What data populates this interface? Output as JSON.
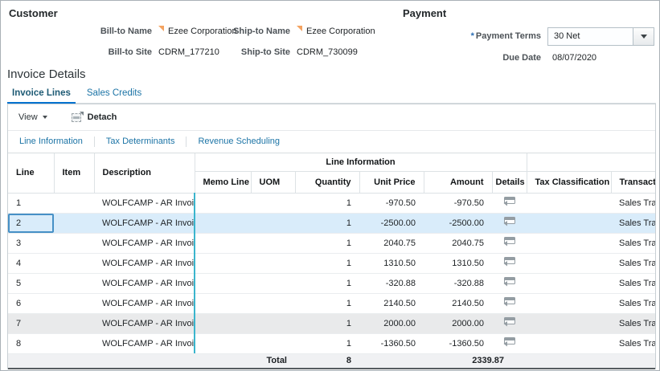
{
  "customer": {
    "title": "Customer",
    "fields": {
      "bill_to_name": {
        "label": "Bill-to Name",
        "value": "Ezee Corporation"
      },
      "ship_to_name": {
        "label": "Ship-to Name",
        "value": "Ezee Corporation"
      },
      "bill_to_site": {
        "label": "Bill-to Site",
        "value": "CDRM_177210"
      },
      "ship_to_site": {
        "label": "Ship-to Site",
        "value": "CDRM_730099"
      }
    }
  },
  "payment": {
    "title": "Payment",
    "payment_terms": {
      "label": "Payment Terms",
      "required": "*",
      "value": "30 Net"
    },
    "due_date": {
      "label": "Due Date",
      "value": "08/07/2020"
    }
  },
  "invoice_details": {
    "title": "Invoice Details",
    "tabs": [
      {
        "label": "Invoice Lines",
        "active": true
      },
      {
        "label": "Sales Credits",
        "active": false
      }
    ],
    "toolbar": {
      "view": "View",
      "detach": "Detach"
    },
    "subtabs": [
      "Line Information",
      "Tax Determinants",
      "Revenue Scheduling"
    ]
  },
  "table": {
    "group_header": "Line Information",
    "columns": {
      "line": "Line",
      "item": "Item",
      "description": "Description",
      "memo_line": "Memo Line",
      "uom": "UOM",
      "quantity": "Quantity",
      "unit_price": "Unit Price",
      "amount": "Amount",
      "details": "Details",
      "tax_classification": "Tax Classification",
      "transaction": "Transactio"
    },
    "rows": [
      {
        "line": "1",
        "item": "",
        "description": "WOLFCAMP - AR Invoice",
        "memo_line": "",
        "uom": "",
        "quantity": "1",
        "unit_price": "-970.50",
        "amount": "-970.50",
        "tax_classification": "",
        "transaction": "Sales Transa",
        "selected": false,
        "shaded": false
      },
      {
        "line": "2",
        "item": "",
        "description": "WOLFCAMP - AR Invoice",
        "memo_line": "",
        "uom": "",
        "quantity": "1",
        "unit_price": "-2500.00",
        "amount": "-2500.00",
        "tax_classification": "",
        "transaction": "Sales Transa",
        "selected": true,
        "shaded": false
      },
      {
        "line": "3",
        "item": "",
        "description": "WOLFCAMP - AR Invoice",
        "memo_line": "",
        "uom": "",
        "quantity": "1",
        "unit_price": "2040.75",
        "amount": "2040.75",
        "tax_classification": "",
        "transaction": "Sales Transa",
        "selected": false,
        "shaded": false
      },
      {
        "line": "4",
        "item": "",
        "description": "WOLFCAMP - AR Invoice",
        "memo_line": "",
        "uom": "",
        "quantity": "1",
        "unit_price": "1310.50",
        "amount": "1310.50",
        "tax_classification": "",
        "transaction": "Sales Transa",
        "selected": false,
        "shaded": false
      },
      {
        "line": "5",
        "item": "",
        "description": "WOLFCAMP - AR Invoice",
        "memo_line": "",
        "uom": "",
        "quantity": "1",
        "unit_price": "-320.88",
        "amount": "-320.88",
        "tax_classification": "",
        "transaction": "Sales Transa",
        "selected": false,
        "shaded": false
      },
      {
        "line": "6",
        "item": "",
        "description": "WOLFCAMP - AR Invoice",
        "memo_line": "",
        "uom": "",
        "quantity": "1",
        "unit_price": "2140.50",
        "amount": "2140.50",
        "tax_classification": "",
        "transaction": "Sales Transa",
        "selected": false,
        "shaded": false
      },
      {
        "line": "7",
        "item": "",
        "description": "WOLFCAMP - AR Invoice",
        "memo_line": "",
        "uom": "",
        "quantity": "1",
        "unit_price": "2000.00",
        "amount": "2000.00",
        "tax_classification": "",
        "transaction": "Sales Transa",
        "selected": false,
        "shaded": true
      },
      {
        "line": "8",
        "item": "",
        "description": "WOLFCAMP - AR Invoice",
        "memo_line": "",
        "uom": "",
        "quantity": "1",
        "unit_price": "-1360.50",
        "amount": "-1360.50",
        "tax_classification": "",
        "transaction": "Sales Transa",
        "selected": false,
        "shaded": false
      }
    ],
    "totals": {
      "label": "Total",
      "quantity": "8",
      "amount": "2339.87"
    }
  },
  "colors": {
    "accent_blue": "#0572ce",
    "link_blue": "#1c74a6",
    "selected_row": "#d9ecfa",
    "frozen_divider": "#3ab5cd",
    "changed_marker_orange": "#f4a361",
    "required_asterisk_blue": "#2a6db4"
  }
}
